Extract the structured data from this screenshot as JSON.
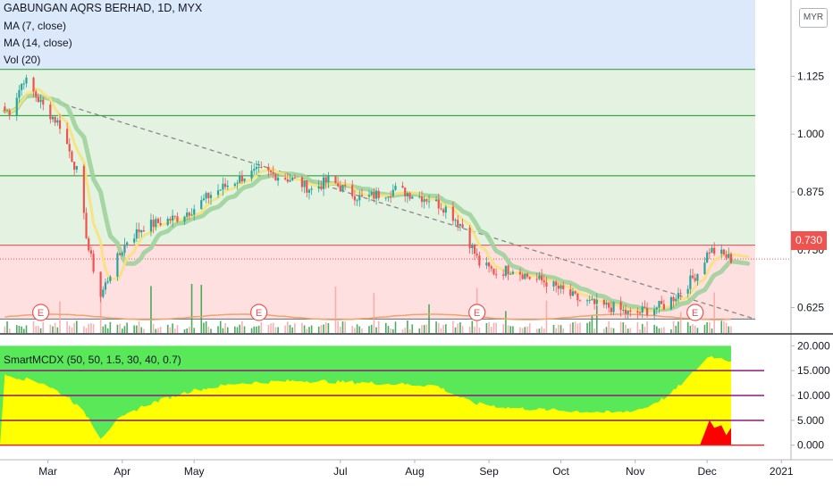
{
  "header": {
    "title": "GABUNGAN AQRS BERHAD, 1D, MYX",
    "ma7": "MA (7, close)",
    "ma14": "MA (14, close)",
    "vol": "Vol (20)",
    "currency": "MYR",
    "last_price": "0.730",
    "indicator": "SmartMCDX (50, 50, 1.5, 30, 40, 0.7)"
  },
  "colors": {
    "up": "#26a69a",
    "down": "#ef5350",
    "ma7": "#f7e27b",
    "ma14": "#9fd39c",
    "green_fill": "#58e858",
    "yellow_fill": "#ffff00",
    "red_fill": "#ff0000",
    "purple": "#8e1a7a"
  },
  "chart_data": [
    {
      "type": "candlestick",
      "series": [
        {
          "name": "MA (7, close)"
        },
        {
          "name": "MA (14, close)"
        },
        {
          "name": "Vol (20)"
        }
      ],
      "x_ticks": [
        "Mar",
        "Apr",
        "May",
        "Jul",
        "Aug",
        "Sep",
        "Oct",
        "Nov",
        "Dec",
        "2021"
      ],
      "y_ticks": [
        0.625,
        0.75,
        0.875,
        1.0,
        1.125
      ],
      "y_tick_labels": [
        "0.625",
        "0.750",
        "0.875",
        "1.000",
        "1.125"
      ],
      "ylim": [
        0.57,
        1.29
      ],
      "last_price": 0.73,
      "horizontal_levels": [
        0.6,
        0.76,
        0.91,
        1.04,
        1.14
      ],
      "trendline": [
        [
          "2020-02-27",
          1.08
        ],
        [
          "2020-12-21",
          0.6
        ]
      ],
      "ohlc_keypoints": [
        [
          "2020-02-14",
          1.05
        ],
        [
          "2020-02-20",
          1.12
        ],
        [
          "2020-02-28",
          1.06
        ],
        [
          "2020-03-06",
          1.02
        ],
        [
          "2020-03-13",
          0.92
        ],
        [
          "2020-03-18",
          0.75
        ],
        [
          "2020-03-23",
          0.65
        ],
        [
          "2020-03-27",
          0.7
        ],
        [
          "2020-04-03",
          0.77
        ],
        [
          "2020-04-10",
          0.8
        ],
        [
          "2020-04-17",
          0.81
        ],
        [
          "2020-04-24",
          0.82
        ],
        [
          "2020-05-01",
          0.84
        ],
        [
          "2020-05-08",
          0.87
        ],
        [
          "2020-05-15",
          0.89
        ],
        [
          "2020-05-22",
          0.91
        ],
        [
          "2020-05-29",
          0.92
        ],
        [
          "2020-06-05",
          0.91
        ],
        [
          "2020-06-12",
          0.9
        ],
        [
          "2020-06-19",
          0.88
        ],
        [
          "2020-06-26",
          0.9
        ],
        [
          "2020-07-03",
          0.88
        ],
        [
          "2020-07-10",
          0.86
        ],
        [
          "2020-07-17",
          0.87
        ],
        [
          "2020-07-24",
          0.88
        ],
        [
          "2020-07-31",
          0.87
        ],
        [
          "2020-08-07",
          0.86
        ],
        [
          "2020-08-14",
          0.84
        ],
        [
          "2020-08-21",
          0.8
        ],
        [
          "2020-08-28",
          0.72
        ],
        [
          "2020-09-04",
          0.7
        ],
        [
          "2020-09-11",
          0.71
        ],
        [
          "2020-09-18",
          0.69
        ],
        [
          "2020-09-25",
          0.68
        ],
        [
          "2020-10-02",
          0.66
        ],
        [
          "2020-10-09",
          0.64
        ],
        [
          "2020-10-16",
          0.63
        ],
        [
          "2020-10-23",
          0.625
        ],
        [
          "2020-10-30",
          0.61
        ],
        [
          "2020-11-06",
          0.62
        ],
        [
          "2020-11-13",
          0.63
        ],
        [
          "2020-11-20",
          0.66
        ],
        [
          "2020-11-27",
          0.7
        ],
        [
          "2020-12-02",
          0.75
        ],
        [
          "2020-12-07",
          0.74
        ],
        [
          "2020-12-11",
          0.73
        ]
      ]
    },
    {
      "type": "area",
      "title": "SmartMCDX (50, 50, 1.5, 30, 40, 0.7)",
      "y_ticks": [
        0,
        5,
        10,
        15,
        20
      ],
      "y_tick_labels": [
        "0.000",
        "5.000",
        "10.000",
        "15.000",
        "20.000"
      ],
      "ylim": [
        -1.5,
        21.5
      ],
      "horizontal_levels": [
        5,
        10,
        15
      ],
      "total": 20,
      "yellow_keypoints": [
        [
          "2020-02-14",
          14.0
        ],
        [
          "2020-02-28",
          12.5
        ],
        [
          "2020-03-10",
          9.5
        ],
        [
          "2020-03-18",
          5.5
        ],
        [
          "2020-03-23",
          1.5
        ],
        [
          "2020-03-30",
          5.0
        ],
        [
          "2020-04-10",
          8.0
        ],
        [
          "2020-04-30",
          11.0
        ],
        [
          "2020-05-20",
          12.5
        ],
        [
          "2020-06-15",
          13.0
        ],
        [
          "2020-07-15",
          12.5
        ],
        [
          "2020-08-10",
          12.0
        ],
        [
          "2020-08-25",
          8.5
        ],
        [
          "2020-09-10",
          7.5
        ],
        [
          "2020-10-01",
          7.0
        ],
        [
          "2020-10-25",
          6.5
        ],
        [
          "2020-11-05",
          7.5
        ],
        [
          "2020-11-15",
          10.0
        ],
        [
          "2020-11-25",
          14.5
        ],
        [
          "2020-12-02",
          18.0
        ],
        [
          "2020-12-11",
          17.0
        ]
      ],
      "red_keypoints": [
        [
          "2020-11-28",
          0
        ],
        [
          "2020-11-30",
          2.5
        ],
        [
          "2020-12-02",
          5.0
        ],
        [
          "2020-12-04",
          3.5
        ],
        [
          "2020-12-07",
          4.0
        ],
        [
          "2020-12-09",
          2.0
        ],
        [
          "2020-12-11",
          3.5
        ]
      ]
    }
  ]
}
